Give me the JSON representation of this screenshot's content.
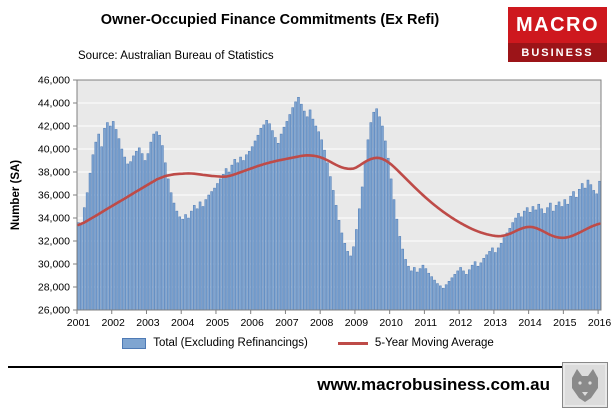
{
  "header": {
    "title": "Owner-Occupied Finance Commitments (Ex Refi)",
    "source": "Source: Australian  Bureau of Statistics",
    "logo": {
      "line1": "MACRO",
      "line2": "BUSINESS",
      "bg": "#ce181e",
      "strip_bg": "#9c1418"
    }
  },
  "footer": {
    "url": "www.macrobusiness.com.au",
    "wolf_logo": "wolf-etching"
  },
  "chart_data": {
    "type": "bar",
    "title": "Owner-Occupied Finance Commitments (Ex Refi)",
    "xlabel": "",
    "ylabel": "Number (SA)",
    "ylim": [
      26000,
      46000
    ],
    "ytick_step": 2000,
    "grid": true,
    "plot_bg": "#E9E9E9",
    "grid_color": "#FFFFFF",
    "legend_position": "bottom",
    "x_start": "2001-01",
    "x_end": "2016-01",
    "xtick_labels": [
      "2001",
      "2002",
      "2003",
      "2004",
      "2005",
      "2006",
      "2007",
      "2008",
      "2009",
      "2010",
      "2011",
      "2012",
      "2013",
      "2014",
      "2015",
      "2016"
    ],
    "series": [
      {
        "name": "Total (Excluding Refinancings)",
        "type": "bar",
        "color": "#7FA5D1",
        "border": "#4E7AB5",
        "values": [
          33600,
          33400,
          34900,
          36200,
          37900,
          39500,
          40600,
          41300,
          40200,
          41800,
          42300,
          42000,
          42400,
          41700,
          40900,
          40000,
          39300,
          38700,
          38900,
          39400,
          39800,
          40100,
          39600,
          39000,
          39600,
          40600,
          41300,
          41500,
          41200,
          40300,
          38800,
          37400,
          36200,
          35300,
          34600,
          34100,
          33900,
          34300,
          34000,
          34600,
          35100,
          34800,
          35400,
          35000,
          35600,
          36000,
          36300,
          36600,
          37000,
          37400,
          37800,
          38300,
          38000,
          38600,
          39100,
          38800,
          39300,
          39000,
          39500,
          39800,
          40200,
          40700,
          41200,
          41800,
          42100,
          42500,
          42200,
          41600,
          41000,
          40500,
          41300,
          41900,
          42400,
          43000,
          43600,
          44100,
          44500,
          43900,
          43300,
          42800,
          43400,
          42600,
          42000,
          41500,
          40800,
          39900,
          38800,
          37600,
          36400,
          35100,
          33800,
          32700,
          31800,
          31100,
          30700,
          31500,
          33000,
          34800,
          36700,
          38900,
          40800,
          42300,
          43200,
          43500,
          42800,
          42000,
          40700,
          39200,
          37400,
          35600,
          33900,
          32400,
          31300,
          30400,
          29800,
          29400,
          29700,
          29300,
          29600,
          29900,
          29600,
          29200,
          28900,
          28600,
          28300,
          28100,
          27900,
          28200,
          28500,
          28800,
          29100,
          29400,
          29700,
          29400,
          29100,
          29500,
          29900,
          30200,
          29800,
          30100,
          30500,
          30800,
          31100,
          31400,
          31000,
          31400,
          31800,
          32300,
          32700,
          33100,
          33600,
          34000,
          34400,
          34100,
          34600,
          34900,
          34500,
          35000,
          34700,
          35200,
          34800,
          34400,
          34900,
          35300,
          34600,
          35100,
          35400,
          35000,
          35600,
          35200,
          35900,
          36300,
          35800,
          36500,
          37000,
          36600,
          37300,
          36900,
          36400,
          36100,
          37200
        ]
      },
      {
        "name": "5-Year Moving Average",
        "type": "line",
        "color": "#BE4B48",
        "values": [
          33400,
          33500,
          33600,
          33750,
          33900,
          34050,
          34200,
          34350,
          34500,
          34650,
          34800,
          34950,
          35100,
          35250,
          35400,
          35550,
          35700,
          35850,
          36000,
          36150,
          36300,
          36450,
          36600,
          36750,
          36900,
          37050,
          37200,
          37350,
          37450,
          37550,
          37650,
          37700,
          37750,
          37800,
          37820,
          37840,
          37850,
          37870,
          37880,
          37870,
          37850,
          37820,
          37790,
          37750,
          37720,
          37690,
          37660,
          37640,
          37620,
          37600,
          37590,
          37600,
          37650,
          37720,
          37800,
          37890,
          37980,
          38070,
          38160,
          38250,
          38340,
          38430,
          38520,
          38600,
          38680,
          38750,
          38820,
          38880,
          38940,
          39000,
          39050,
          39100,
          39150,
          39200,
          39250,
          39300,
          39350,
          39400,
          39430,
          39450,
          39440,
          39420,
          39380,
          39320,
          39240,
          39140,
          39020,
          38890,
          38750,
          38620,
          38500,
          38400,
          38330,
          38290,
          38280,
          38300,
          38400,
          38550,
          38720,
          38880,
          39020,
          39130,
          39200,
          39230,
          39210,
          39140,
          39020,
          38860,
          38660,
          38440,
          38200,
          37950,
          37700,
          37450,
          37200,
          36950,
          36700,
          36460,
          36220,
          35990,
          35760,
          35540,
          35330,
          35120,
          34920,
          34730,
          34540,
          34360,
          34190,
          34020,
          33860,
          33710,
          33560,
          33420,
          33290,
          33160,
          33040,
          32930,
          32830,
          32740,
          32660,
          32590,
          32530,
          32480,
          32440,
          32420,
          32430,
          32470,
          32540,
          32630,
          32740,
          32860,
          32980,
          33080,
          33160,
          33210,
          33230,
          33200,
          33130,
          33030,
          32910,
          32780,
          32650,
          32530,
          32430,
          32350,
          32300,
          32280,
          32290,
          32330,
          32400,
          32490,
          32600,
          32720,
          32850,
          32980,
          33110,
          33230,
          33340,
          33430,
          33500
        ]
      }
    ]
  }
}
